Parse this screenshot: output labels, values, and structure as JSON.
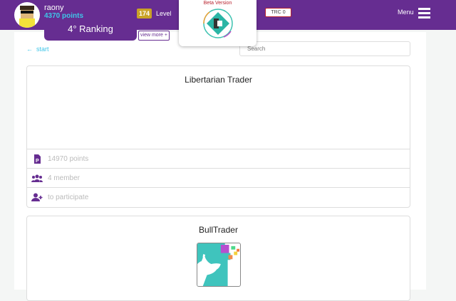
{
  "user": {
    "name": "raony",
    "points": "4370 points",
    "level_value": "174",
    "level_label": "Level",
    "ranking": "4° Ranking",
    "view_more": "view more +"
  },
  "beta": {
    "label": "Beta Version"
  },
  "trc": "TRC 0",
  "menu": {
    "label": "Menu",
    "icon": "hamburger-icon"
  },
  "nav": {
    "back_label": "start",
    "back_icon": "arrow-left-icon"
  },
  "search": {
    "placeholder": "Search",
    "value": ""
  },
  "colors": {
    "brand": "#662d91",
    "accent": "#3fc6e8",
    "badge": "#c9a227",
    "beta": "#b8232f"
  },
  "groups": [
    {
      "title": "Libertarian Trader",
      "points": "14970 points",
      "members": "4 member",
      "action": "to participate"
    },
    {
      "title": "BullTrader"
    }
  ]
}
